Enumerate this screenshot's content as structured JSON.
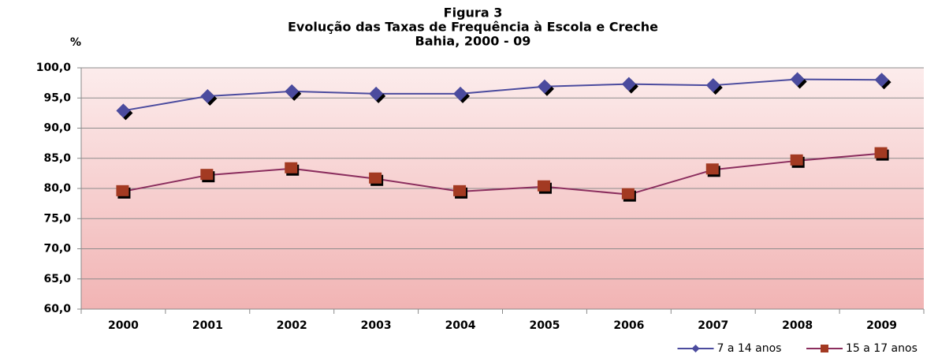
{
  "chart_data": {
    "type": "line",
    "title": [
      "Figura 3",
      "Evolução das Taxas de Frequência à Escola e Creche",
      "Bahia, 2000 - 09"
    ],
    "y_label": "%",
    "categories": [
      "2000",
      "2001",
      "2002",
      "2003",
      "2004",
      "2005",
      "2006",
      "2007",
      "2008",
      "2009"
    ],
    "series": [
      {
        "name": "7 a 14 anos",
        "color": "#4b4b9e",
        "marker": "diamond",
        "values": [
          92.9,
          95.3,
          96.1,
          95.7,
          95.7,
          96.9,
          97.3,
          97.1,
          98.1,
          98.0
        ]
      },
      {
        "name": "15 a 17 anos",
        "color": "#8b2e5e",
        "marker_color": "#a33a22",
        "marker": "square",
        "values": [
          79.5,
          82.2,
          83.3,
          81.6,
          79.5,
          80.3,
          79.0,
          83.1,
          84.6,
          85.8
        ]
      }
    ],
    "ylim": [
      60,
      100
    ],
    "yticks": [
      {
        "value": 60,
        "label": "60,0"
      },
      {
        "value": 65,
        "label": "65,0"
      },
      {
        "value": 70,
        "label": "70,0"
      },
      {
        "value": 75,
        "label": "75,0"
      },
      {
        "value": 80,
        "label": "80,0"
      },
      {
        "value": 85,
        "label": "85,0"
      },
      {
        "value": 90,
        "label": "90,0"
      },
      {
        "value": 95,
        "label": "95,0"
      },
      {
        "value": 100,
        "label": "100,0"
      }
    ],
    "grid": true,
    "legend": "bottom-right"
  }
}
